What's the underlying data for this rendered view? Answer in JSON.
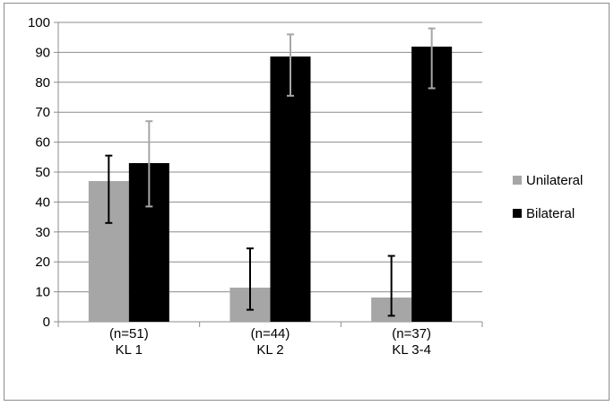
{
  "chart_data": {
    "type": "bar",
    "title": "",
    "xlabel": "",
    "ylabel": "",
    "ylim": [
      0,
      100
    ],
    "yticks": [
      0,
      10,
      20,
      30,
      40,
      50,
      60,
      70,
      80,
      90,
      100
    ],
    "grid": true,
    "legend_position": "right",
    "categories": [
      {
        "n_label": "(n=51)",
        "label": "KL 1"
      },
      {
        "n_label": "(n=44)",
        "label": "KL 2"
      },
      {
        "n_label": "(n=37)",
        "label": "KL 3-4"
      }
    ],
    "series": [
      {
        "name": "Unilateral",
        "color": "#a6a6a6",
        "error_color": "#000000",
        "values": [
          47,
          11.4,
          8.1
        ],
        "error_low": [
          33,
          4,
          2
        ],
        "error_high": [
          55.5,
          24.5,
          22
        ]
      },
      {
        "name": "Bilateral",
        "color": "#000000",
        "error_color": "#a6a6a6",
        "values": [
          53,
          88.6,
          91.9
        ],
        "error_low": [
          38.5,
          75.5,
          78
        ],
        "error_high": [
          67,
          96,
          98
        ]
      }
    ]
  }
}
